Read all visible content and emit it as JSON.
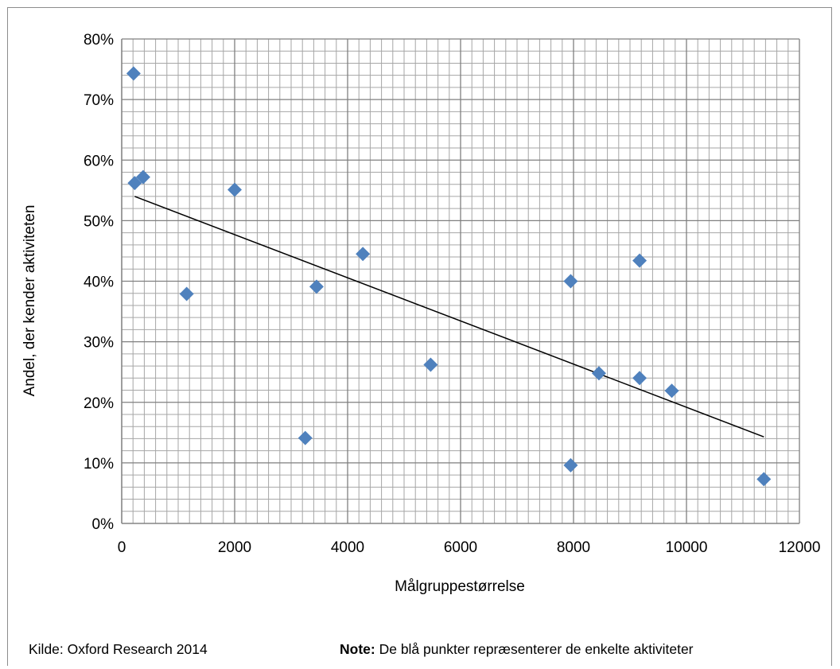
{
  "chart_data": {
    "type": "scatter",
    "title": "",
    "xlabel": "Målgruppestørrelse",
    "ylabel": "Andel, der kender aktiviteten",
    "xlim": [
      0,
      12000
    ],
    "ylim": [
      0,
      0.8
    ],
    "x_ticks": [
      0,
      2000,
      4000,
      6000,
      8000,
      10000,
      12000
    ],
    "x_tick_labels": [
      "0",
      "2000",
      "4000",
      "6000",
      "8000",
      "10000",
      "12000"
    ],
    "y_ticks": [
      0,
      0.1,
      0.2,
      0.3,
      0.4,
      0.5,
      0.6,
      0.7,
      0.8
    ],
    "y_tick_labels": [
      "0%",
      "10%",
      "20%",
      "30%",
      "40%",
      "50%",
      "60%",
      "70%",
      "80%"
    ],
    "grid": true,
    "minor_grid": true,
    "legend": "none",
    "marker": "diamond",
    "series": [
      {
        "color": "#4f81bd",
        "points": [
          {
            "x": 210,
            "y": 0.743
          },
          {
            "x": 230,
            "y": 0.562
          },
          {
            "x": 380,
            "y": 0.572
          },
          {
            "x": 1150,
            "y": 0.379
          },
          {
            "x": 2000,
            "y": 0.551
          },
          {
            "x": 3250,
            "y": 0.141
          },
          {
            "x": 3450,
            "y": 0.391
          },
          {
            "x": 4270,
            "y": 0.445
          },
          {
            "x": 5470,
            "y": 0.262
          },
          {
            "x": 7950,
            "y": 0.4
          },
          {
            "x": 7950,
            "y": 0.096
          },
          {
            "x": 8450,
            "y": 0.248
          },
          {
            "x": 9170,
            "y": 0.434
          },
          {
            "x": 9170,
            "y": 0.24
          },
          {
            "x": 9740,
            "y": 0.219
          },
          {
            "x": 11370,
            "y": 0.073
          }
        ]
      }
    ],
    "trendline": {
      "type": "linear",
      "color": "#000000",
      "x_start": 230,
      "y_start": 0.54,
      "x_end": 11370,
      "y_end": 0.143
    }
  },
  "footer": {
    "source": "Kilde: Oxford Research 2014",
    "note_label": "Note:",
    "note_text": " De blå punkter repræsenterer de enkelte aktiviteter"
  }
}
